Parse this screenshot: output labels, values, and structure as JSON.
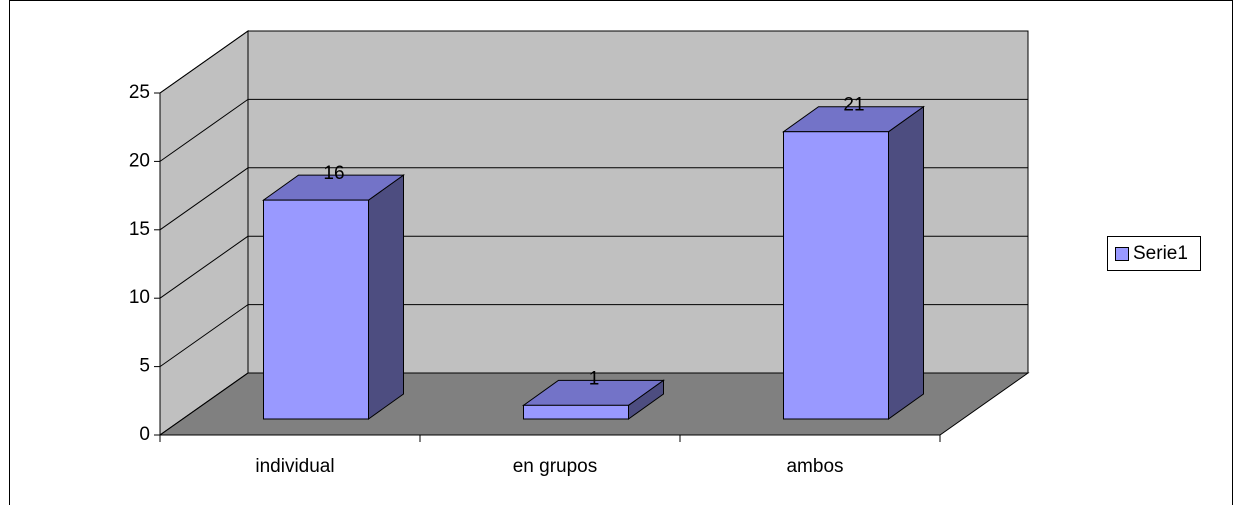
{
  "chart_data": {
    "type": "bar",
    "categories": [
      "individual",
      "en grupos",
      "ambos"
    ],
    "series": [
      {
        "name": "Serie1",
        "color": "#9999ff",
        "values": [
          16,
          1,
          21
        ]
      }
    ],
    "ylim": [
      0,
      25
    ],
    "yticks": [
      0,
      5,
      10,
      15,
      20,
      25
    ],
    "grid": true,
    "legend": "right"
  }
}
